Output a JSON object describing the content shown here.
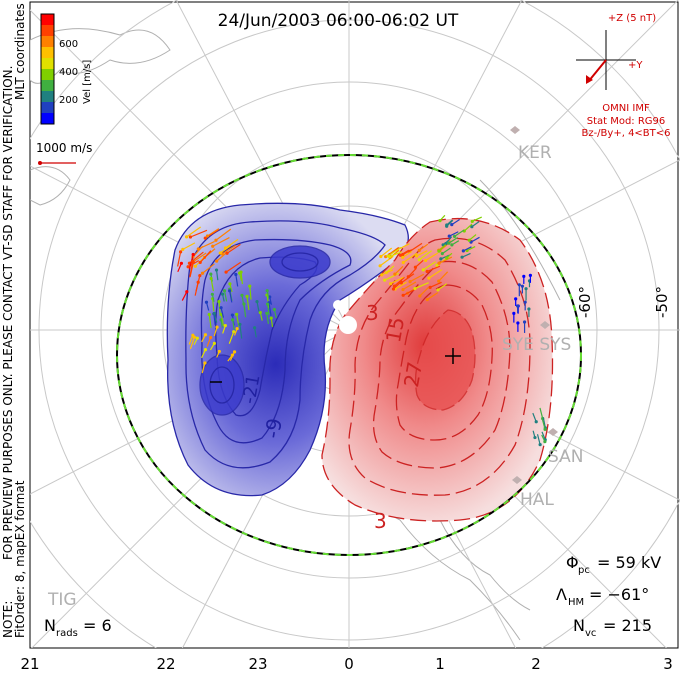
{
  "title": "24/Jun/2003 06:00-06:02 UT",
  "colorbar": {
    "tick_labels": [
      "600",
      "400",
      "200"
    ],
    "unit_label": "Vel [m/s]",
    "colors": [
      "#ff0000",
      "#ff4000",
      "#ff8000",
      "#ffc000",
      "#e0e000",
      "#80d000",
      "#40b040",
      "#208080",
      "#2040c0",
      "#0000ff"
    ]
  },
  "side_labels": {
    "coordinates": "MLT coordinates",
    "preview": "FOR PREVIEW PURPOSES ONLY. PLEASE CONTACT VT-SD STAFF FOR VERIFICATION.",
    "note": "NOTE:",
    "fitorder": "FitOrder: 8, mapEX format"
  },
  "ref_vector": {
    "label": "1000 m/s"
  },
  "imf": {
    "z_label": "+Z (5 nT)",
    "y_label": "+Y",
    "model_title": "OMNI IMF",
    "stat_mod": "Stat Mod: RG96",
    "conditions": "Bz-/By+, 4<BT<6"
  },
  "stations": [
    "KER",
    "SYE SYS",
    "SAN",
    "HAL",
    "TIG"
  ],
  "latitude_labels": [
    "-60°",
    "-50°"
  ],
  "mlt_ticks": [
    "21",
    "22",
    "23",
    "0",
    "1",
    "2",
    "3"
  ],
  "contour_labels": {
    "negative": [
      "-9",
      "-21"
    ],
    "positive": [
      "3",
      "15",
      "27",
      "3"
    ]
  },
  "stats": {
    "phi_pc_label": "Φ",
    "phi_pc_sub": "pc",
    "phi_pc_value": "= 59 kV",
    "lambda_hm_label": "Λ",
    "lambda_hm_sub": "HM",
    "lambda_hm_value": "= −61°",
    "n_vc_label": "N",
    "n_vc_sub": "vc",
    "n_vc_value": "= 215",
    "n_rads_label": "N",
    "n_rads_sub": "rads",
    "n_rads_value": "= 6"
  },
  "colors": {
    "negative_cell": "#3a3acc",
    "positive_cell": "#e03030",
    "boundary": "#00cc00"
  }
}
